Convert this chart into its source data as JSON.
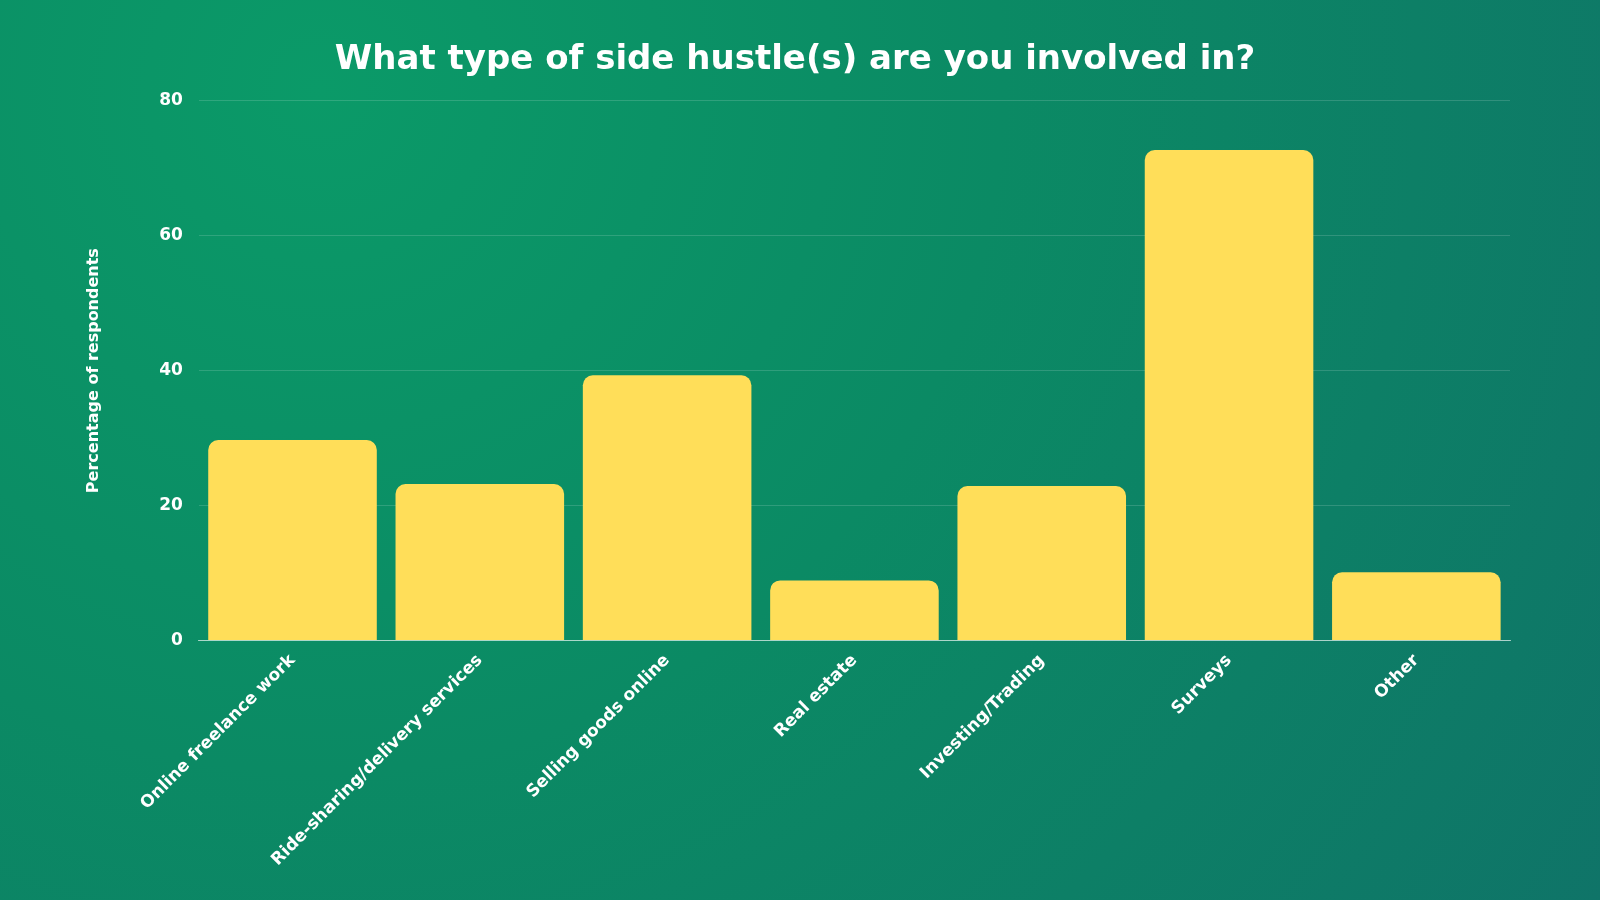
{
  "chart_data": {
    "type": "bar",
    "title": "What type of side hustle(s) are you involved in?",
    "ylabel": "Percentage of respondents",
    "categories": [
      "Online freelance work",
      "Ride-sharing/delivery services",
      "Selling goods online",
      "Real estate",
      "Investing/Trading",
      "Surveys",
      "Other"
    ],
    "values": [
      29.7,
      23.2,
      39.3,
      8.9,
      22.9,
      72.7,
      10.1
    ],
    "color": "#ffde59",
    "ylim": [
      0,
      80
    ],
    "yticks": [
      0,
      20,
      40,
      60,
      80
    ],
    "grid": "y",
    "legend": false
  }
}
